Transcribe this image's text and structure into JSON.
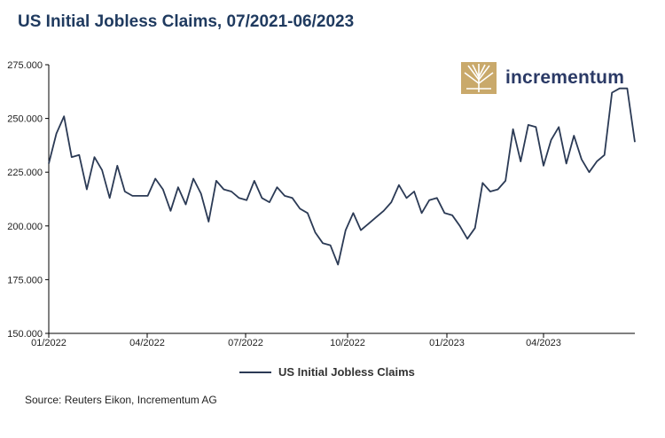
{
  "title": "US Initial Jobless Claims, 07/2021-06/2023",
  "source": "Source: Reuters Eikon, Incrementum AG",
  "logo": {
    "text": "incrementum",
    "icon": "tree-logo-icon"
  },
  "colors": {
    "line": "#2b3a55",
    "title": "#1f3a5f",
    "logo_gold": "#c9a96b",
    "logo_text": "#2b3a66"
  },
  "chart_data": {
    "type": "line",
    "title": "US Initial Jobless Claims, 07/2021-06/2023",
    "xlabel": "",
    "ylabel": "",
    "ylim": [
      150000,
      275000
    ],
    "yticks": [
      "275.000",
      "250.000",
      "225.000",
      "200.000",
      "175.000",
      "150.000"
    ],
    "ytick_values": [
      275000,
      250000,
      225000,
      200000,
      175000,
      150000
    ],
    "xticks": [
      "01/2022",
      "04/2022",
      "07/2022",
      "10/2022",
      "01/2023",
      "04/2023"
    ],
    "legend": {
      "position": "bottom-center",
      "entries": [
        "US Initial Jobless Claims"
      ]
    },
    "grid": false,
    "series": [
      {
        "name": "US Initial Jobless Claims",
        "values": [
          229000,
          243000,
          251000,
          232000,
          233000,
          217000,
          232000,
          226000,
          213000,
          228000,
          216000,
          214000,
          214000,
          214000,
          222000,
          217000,
          207000,
          218000,
          210000,
          222000,
          215000,
          202000,
          221000,
          217000,
          216000,
          213000,
          212000,
          221000,
          213000,
          211000,
          218000,
          214000,
          213000,
          208000,
          206000,
          197000,
          192000,
          191000,
          182000,
          198000,
          206000,
          198000,
          201000,
          204000,
          207000,
          211000,
          219000,
          213000,
          216000,
          206000,
          212000,
          213000,
          206000,
          205000,
          200000,
          194000,
          199000,
          220000,
          216000,
          217000,
          221000,
          245000,
          230000,
          247000,
          246000,
          228000,
          240000,
          246000,
          229000,
          242000,
          231000,
          225000,
          230000,
          233000,
          262000,
          264000,
          264000,
          239000
        ]
      }
    ]
  }
}
